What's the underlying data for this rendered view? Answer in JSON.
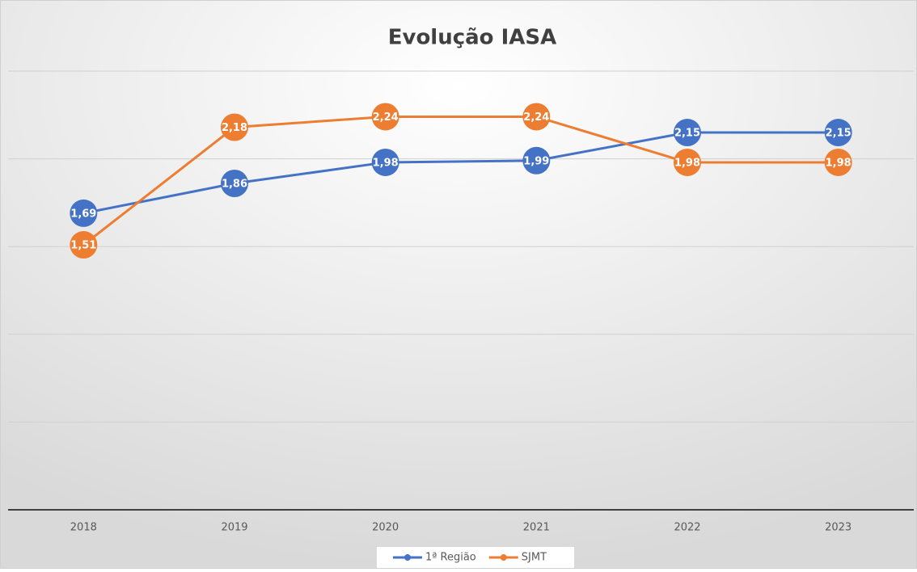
{
  "chart_data": {
    "type": "line",
    "title": "Evolução IASA",
    "categories": [
      "2018",
      "2019",
      "2020",
      "2021",
      "2022",
      "2023"
    ],
    "series": [
      {
        "name": "1ª Região",
        "color": "#4472c4",
        "values": [
          1.69,
          1.86,
          1.98,
          1.99,
          2.15,
          2.15
        ],
        "value_labels": [
          "1,69",
          "1,86",
          "1,98",
          "1,99",
          "2,15",
          "2,15"
        ]
      },
      {
        "name": "SJMT",
        "color": "#ed7d31",
        "values": [
          1.51,
          2.18,
          2.24,
          2.24,
          1.98,
          1.98
        ],
        "value_labels": [
          "1,51",
          "2,18",
          "2,24",
          "2,24",
          "1,98",
          "1,98"
        ]
      }
    ],
    "ylim": [
      0,
      2.5
    ],
    "yticks": [
      0,
      0.5,
      1,
      1.5,
      2,
      2.5
    ],
    "grid": true,
    "legend": "bottom"
  }
}
